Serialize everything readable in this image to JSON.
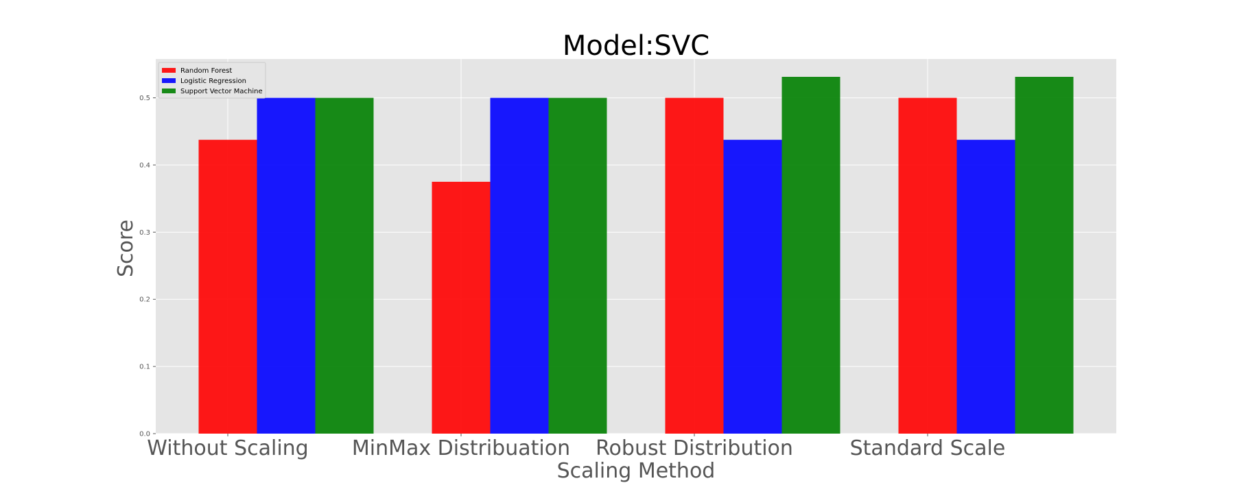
{
  "chart_data": {
    "type": "bar",
    "title": "Model:SVC",
    "xlabel": "Scaling Method",
    "ylabel": "Score",
    "categories": [
      "Without Scaling",
      "MinMax Distribuation",
      "Robust Distribution",
      "Standard Scale"
    ],
    "series": [
      {
        "name": "Random Forest",
        "color": "#ff0000",
        "values": [
          0.4375,
          0.375,
          0.5,
          0.5
        ]
      },
      {
        "name": "Logistic Regression",
        "color": "#0000ff",
        "values": [
          0.5,
          0.5,
          0.4375,
          0.4375
        ]
      },
      {
        "name": "Support Vector Machine",
        "color": "#007f00",
        "values": [
          0.5,
          0.5,
          0.53125,
          0.53125
        ]
      }
    ],
    "ylim": [
      0,
      0.5578
    ],
    "yticks": [
      "0.0",
      "0.1",
      "0.2",
      "0.3",
      "0.4",
      "0.5"
    ],
    "grid": true,
    "legend_position": "top-left",
    "background": "#e5e5e5"
  }
}
